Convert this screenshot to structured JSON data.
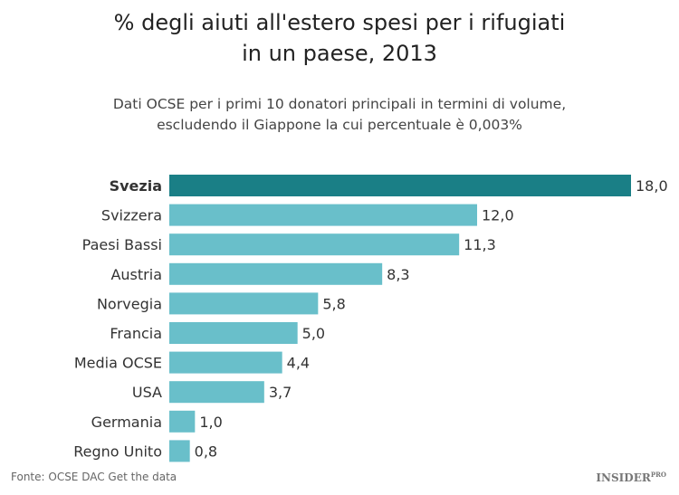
{
  "chart_data": {
    "type": "bar",
    "orientation": "horizontal",
    "title": "% degli aiuti all'estero spesi per i rifugiati in un paese, 2013",
    "title_lines": [
      "% degli aiuti all'estero spesi per i rifugiati",
      "in un paese, 2013"
    ],
    "subtitle_lines": [
      "Dati OCSE per i primi 10 donatori principali  in termini di volume,",
      "escludendo il Giappone la cui percentuale è 0,003%"
    ],
    "categories": [
      "Svezia",
      "Svizzera",
      "Paesi Bassi",
      "Austria",
      "Norvegia",
      "Francia",
      "Media OCSE",
      "USA",
      "Germania",
      "Regno Unito"
    ],
    "values": [
      18.0,
      12.0,
      11.3,
      8.3,
      5.8,
      5.0,
      4.4,
      3.7,
      1.0,
      0.8
    ],
    "value_labels": [
      "18,0",
      "12,0",
      "11,3",
      "8,3",
      "5,8",
      "5,0",
      "4,4",
      "3,7",
      "1,0",
      "0,8"
    ],
    "highlight": "Svezia",
    "xlim": [
      0,
      18
    ],
    "grid": false,
    "colors": {
      "highlight": "#1a7f86",
      "default": "#69bfca"
    }
  },
  "source": "Fonte: OCSE DAC Get the data",
  "logo": {
    "text": "INSIDER",
    "sup": "PRO"
  }
}
